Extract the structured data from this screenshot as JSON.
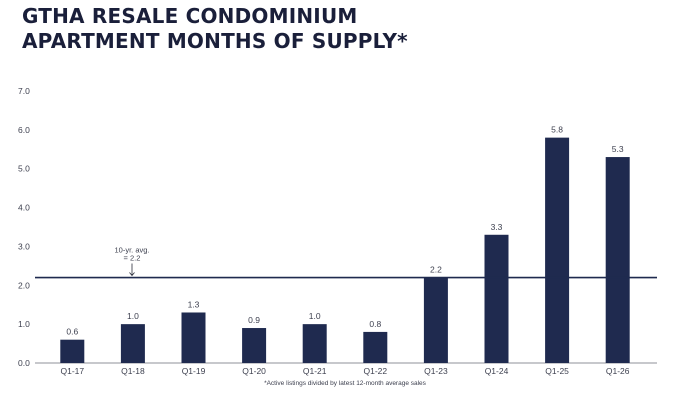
{
  "title_line1": "GTHA RESALE CONDOMINIUM",
  "title_line2": "APARTMENT MONTHS OF SUPPLY*",
  "footnote": "*Active listings divided by latest 12-month average sales",
  "colors": {
    "bar": "#1f2a4f",
    "ref_line": "#1f2a4f",
    "axis": "#6a6d78"
  },
  "chart_data": {
    "type": "bar",
    "title": "GTHA RESALE CONDOMINIUM APARTMENT MONTHS OF SUPPLY*",
    "categories": [
      "Q1-17",
      "Q1-18",
      "Q1-19",
      "Q1-20",
      "Q1-21",
      "Q1-22",
      "Q1-23",
      "Q1-24",
      "Q1-25",
      "Q1-26"
    ],
    "values": [
      0.6,
      1.0,
      1.3,
      0.9,
      1.0,
      0.8,
      2.2,
      3.3,
      5.8,
      5.3
    ],
    "value_labels": [
      "0.6",
      "1.0",
      "1.3",
      "0.9",
      "1.0",
      "0.8",
      "2.2",
      "3.3",
      "5.8",
      "5.3"
    ],
    "y_ticks": [
      "0.0",
      "1.0",
      "2.0",
      "3.0",
      "4.0",
      "5.0",
      "6.0",
      "7.0"
    ],
    "ylim": [
      0,
      7
    ],
    "xlabel": "",
    "ylabel": "",
    "grid": false,
    "reference_line": {
      "value": 2.2,
      "label_line1": "10-yr. avg.",
      "label_line2": "= 2.2"
    }
  }
}
